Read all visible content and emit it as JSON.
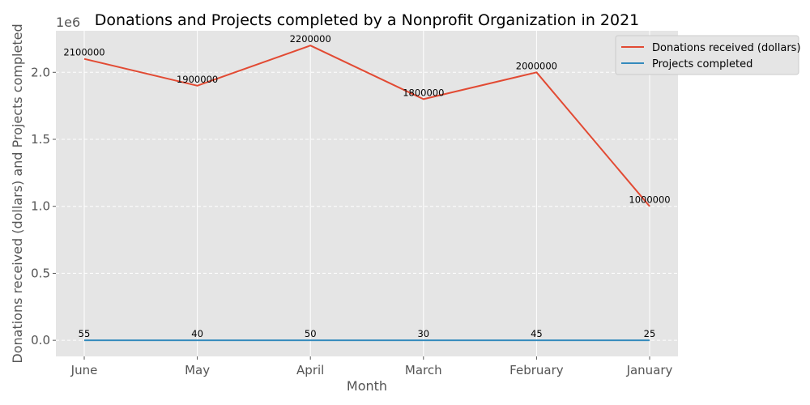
{
  "chart_data": {
    "type": "line",
    "title": "Donations and Projects completed by a Nonprofit Organization in 2021",
    "xlabel": "Month",
    "ylabel": "Donations received (dollars) and Projects completed",
    "y_offset_label": "1e6",
    "categories": [
      "June",
      "May",
      "April",
      "March",
      "February",
      "January"
    ],
    "ylim": [
      -120000,
      2310000
    ],
    "yticks": [
      0,
      500000,
      1000000,
      1500000,
      2000000
    ],
    "ytick_labels": [
      "0.0",
      "0.5",
      "1.0",
      "1.5",
      "2.0"
    ],
    "grid": true,
    "legend_position": "top-right",
    "series": [
      {
        "name": "Donations received (dollars)",
        "color": "#E24A33",
        "values": [
          2100000,
          1900000,
          2200000,
          1800000,
          2000000,
          1000000
        ],
        "labels": [
          "2100000",
          "1900000",
          "2200000",
          "1800000",
          "2000000",
          "1000000"
        ]
      },
      {
        "name": "Projects completed",
        "color": "#348ABD",
        "values": [
          55,
          40,
          50,
          30,
          45,
          25
        ],
        "labels": [
          "55",
          "40",
          "50",
          "30",
          "45",
          "25"
        ]
      }
    ]
  }
}
